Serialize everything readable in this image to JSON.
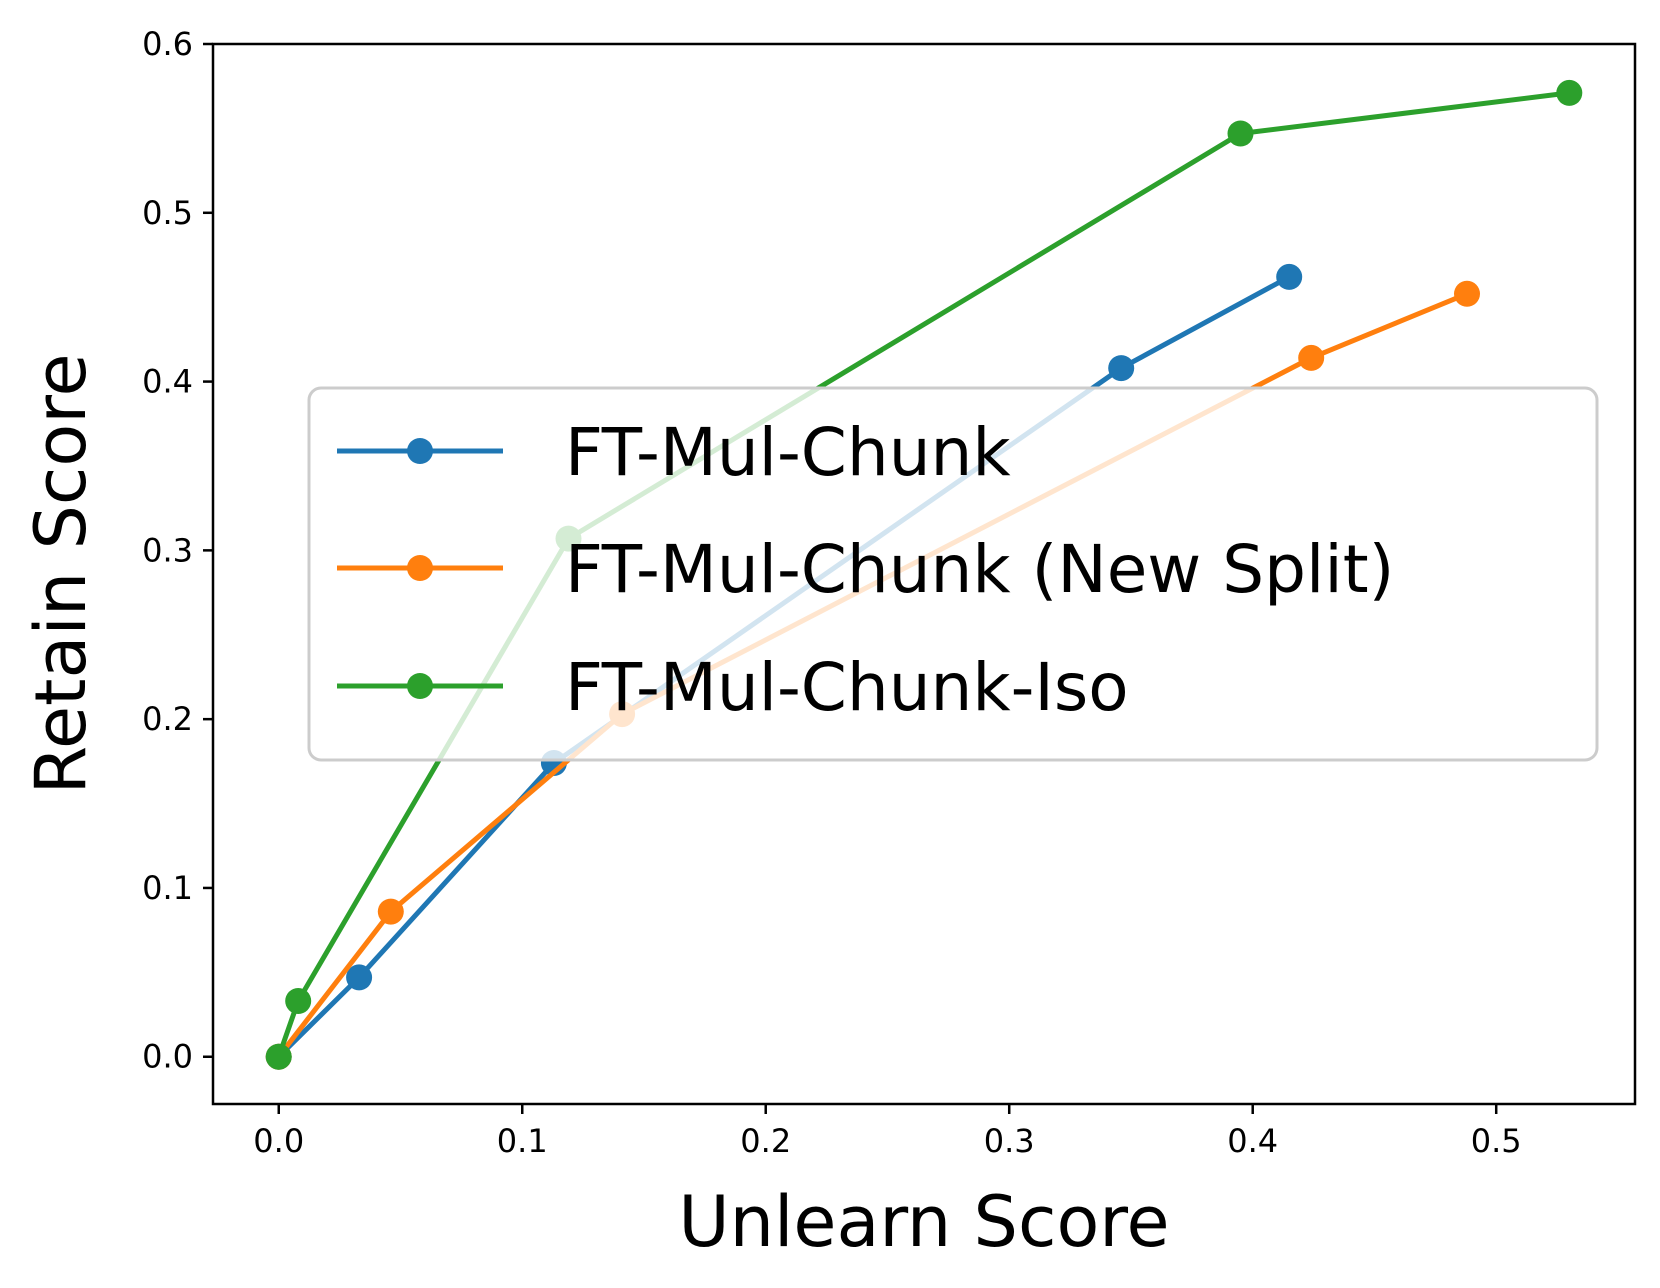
{
  "chart_data": {
    "type": "line",
    "title": "",
    "xlabel": "Unlearn Score",
    "ylabel": "Retain Score",
    "xlim": [
      -0.027,
      0.557
    ],
    "ylim": [
      -0.028,
      0.6
    ],
    "xticks": [
      0.0,
      0.1,
      0.2,
      0.3,
      0.4,
      0.5
    ],
    "xtick_labels": [
      "0.0",
      "0.1",
      "0.2",
      "0.3",
      "0.4",
      "0.5"
    ],
    "yticks": [
      0.0,
      0.1,
      0.2,
      0.3,
      0.4,
      0.5,
      0.6
    ],
    "ytick_labels": [
      "0.0",
      "0.1",
      "0.2",
      "0.3",
      "0.4",
      "0.5",
      "0.6"
    ],
    "grid": false,
    "legend_position": "center-right",
    "series": [
      {
        "name": "FT-Mul-Chunk",
        "color": "#1f77b4",
        "marker": "circle",
        "x": [
          0.0,
          0.033,
          0.113,
          0.346,
          0.415
        ],
        "y": [
          0.0,
          0.047,
          0.174,
          0.408,
          0.462
        ]
      },
      {
        "name": "FT-Mul-Chunk (New Split)",
        "color": "#ff7f0e",
        "marker": "circle",
        "x": [
          0.0,
          0.046,
          0.141,
          0.424,
          0.488
        ],
        "y": [
          0.0,
          0.086,
          0.203,
          0.414,
          0.452
        ]
      },
      {
        "name": "FT-Mul-Chunk-Iso",
        "color": "#2ca02c",
        "marker": "circle",
        "x": [
          0.0,
          0.008,
          0.119,
          0.395,
          0.53
        ],
        "y": [
          0.0,
          0.033,
          0.307,
          0.547,
          0.571
        ]
      }
    ]
  }
}
